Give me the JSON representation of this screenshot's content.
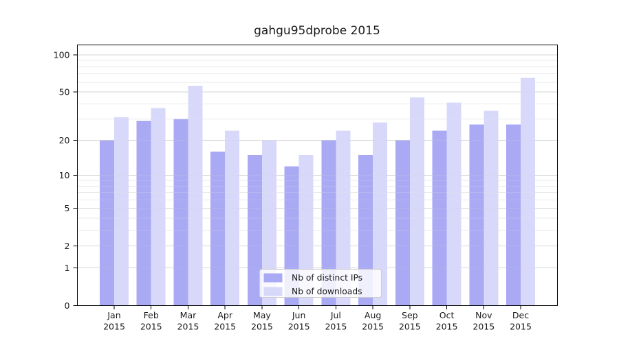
{
  "figure": {
    "background": "#ffffff"
  },
  "chart_data": {
    "type": "bar",
    "title": "gahgu95dprobe 2015",
    "categories": [
      "Jan",
      "Feb",
      "Mar",
      "Apr",
      "May",
      "Jun",
      "Jul",
      "Aug",
      "Sep",
      "Oct",
      "Nov",
      "Dec"
    ],
    "x_tick_second_line": "2015",
    "series": [
      {
        "name": "Nb of distinct IPs",
        "color": "#a9a9f4",
        "values": [
          20,
          29,
          30,
          16,
          15,
          12,
          20,
          15,
          20,
          24,
          27,
          27
        ]
      },
      {
        "name": "Nb of downloads",
        "color": "#d8d8fa",
        "values": [
          31,
          37,
          56,
          24,
          20,
          15,
          24,
          28,
          45,
          41,
          35,
          65
        ]
      }
    ],
    "yscale": "log1p",
    "ylim": [
      0,
      120
    ],
    "yticks": [
      0,
      1,
      2,
      5,
      10,
      20,
      50,
      100
    ],
    "yticks_minor": [
      3,
      4,
      6,
      7,
      8,
      9,
      30,
      40,
      60,
      70,
      80,
      90
    ],
    "grid": "horizontal",
    "legend": {
      "position": "bottom-center"
    },
    "colors": {
      "major_grid": "#d4d4d4",
      "minor_grid": "#e9e9e9",
      "axis": "#000000",
      "legend_border": "#cccccc",
      "legend_background": "#ffffff"
    }
  }
}
